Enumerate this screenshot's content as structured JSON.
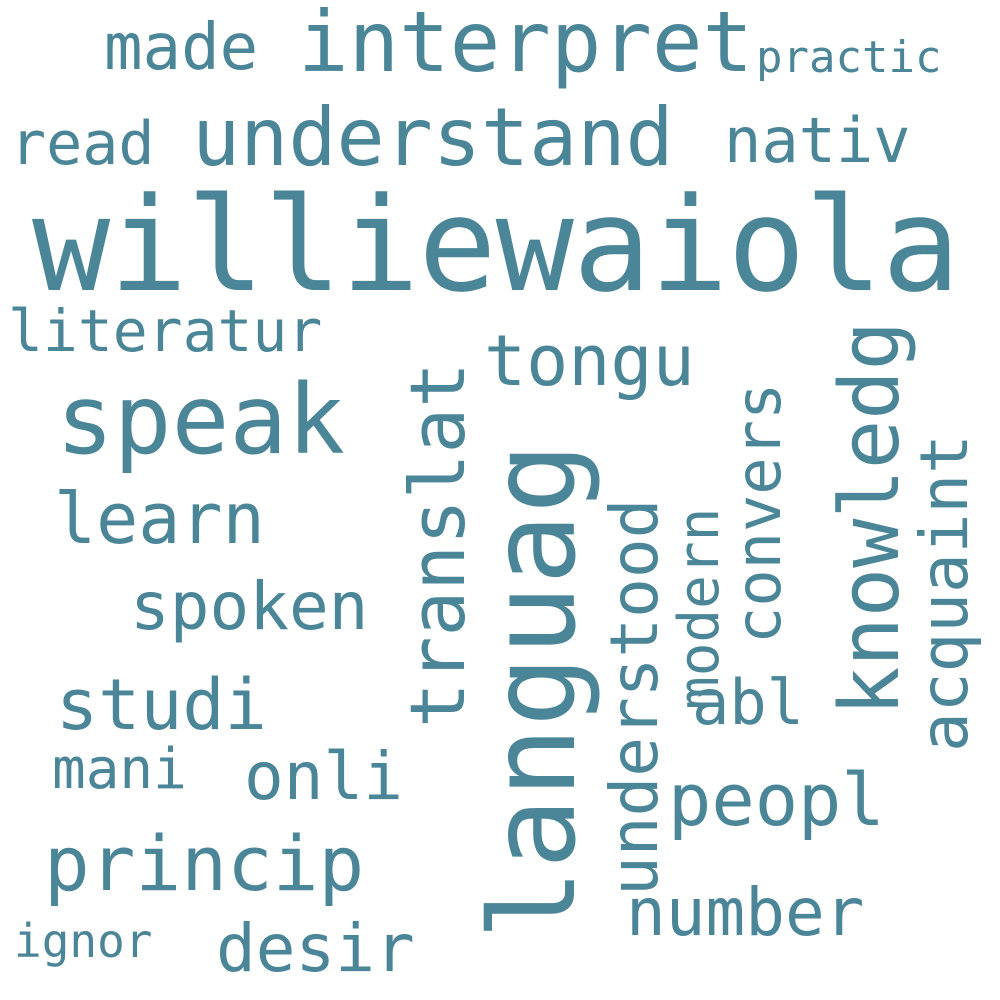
{
  "cloud": {
    "color": "#4b8598",
    "background": "#ffffff",
    "words": [
      {
        "id": "williewaiola",
        "text": "williewaiola"
      },
      {
        "id": "languag",
        "text": "languag"
      },
      {
        "id": "speak",
        "text": "speak"
      },
      {
        "id": "interpret",
        "text": "interpret"
      },
      {
        "id": "understand",
        "text": "understand"
      },
      {
        "id": "knowledg",
        "text": "knowledg"
      },
      {
        "id": "translat",
        "text": "translat"
      },
      {
        "id": "tongu",
        "text": "tongu"
      },
      {
        "id": "princip",
        "text": "princip"
      },
      {
        "id": "made",
        "text": "made"
      },
      {
        "id": "practic",
        "text": "practic"
      },
      {
        "id": "read",
        "text": "read"
      },
      {
        "id": "nativ",
        "text": "nativ"
      },
      {
        "id": "literatur",
        "text": "literatur"
      },
      {
        "id": "learn",
        "text": "learn"
      },
      {
        "id": "spoken",
        "text": "spoken"
      },
      {
        "id": "studi",
        "text": "studi"
      },
      {
        "id": "mani",
        "text": "mani"
      },
      {
        "id": "onli",
        "text": "onli"
      },
      {
        "id": "desir",
        "text": "desir"
      },
      {
        "id": "ignor",
        "text": "ignor"
      },
      {
        "id": "understood",
        "text": "understood"
      },
      {
        "id": "modern",
        "text": "modern"
      },
      {
        "id": "convers",
        "text": "convers"
      },
      {
        "id": "acquaint",
        "text": "acquaint"
      },
      {
        "id": "abl",
        "text": "abl"
      },
      {
        "id": "peopl",
        "text": "peopl"
      },
      {
        "id": "number",
        "text": "number"
      }
    ]
  }
}
